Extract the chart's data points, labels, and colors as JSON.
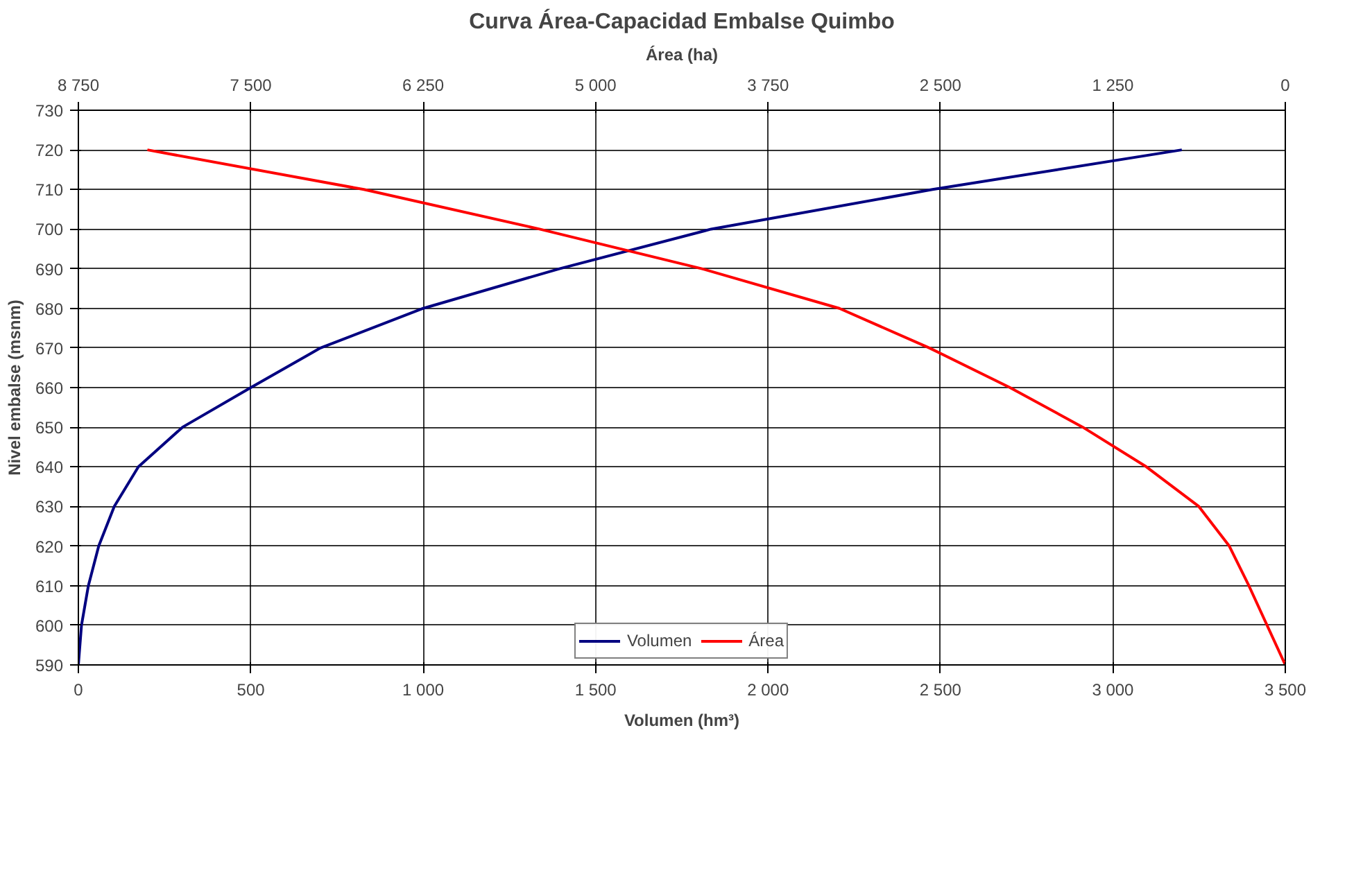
{
  "chart_data": {
    "type": "line",
    "title": "Curva Área-Capacidad Embalse Quimbo",
    "xlabel": "Volumen (hm³)",
    "x2label": "Área (ha)",
    "ylabel": "Nivel embalse (msnm)",
    "series": [
      {
        "name": "Volumen",
        "color": "#000080",
        "x": [
          0,
          9,
          29,
          59,
          104,
          174,
          302,
          500,
          702,
          1000,
          1395,
          1835,
          2477,
          3200
        ],
        "values": [
          590,
          600,
          610,
          620,
          630,
          640,
          650,
          660,
          670,
          680,
          690,
          700,
          710,
          720
        ]
      },
      {
        "name": "Área",
        "color": "#ff0000",
        "axis": "x2",
        "x": [
          0,
          264,
          406,
          627,
          1007,
          1468,
          1996,
          2580,
          3233,
          4229,
          5407,
          6680,
          8250
        ],
        "values": [
          590,
          610,
          620,
          630,
          640,
          650,
          660,
          670,
          680,
          690,
          700,
          710,
          720
        ]
      }
    ],
    "xlim": [
      0,
      3500
    ],
    "xticks": [
      0,
      500,
      {
        "value": 1000,
        "label": "1 000"
      },
      {
        "value": 1500,
        "label": "1 500"
      },
      {
        "value": 2000,
        "label": "2 000"
      },
      {
        "value": 2500,
        "label": "2 500"
      },
      {
        "value": 3000,
        "label": "3 000"
      },
      {
        "value": 3500,
        "label": "3 500"
      }
    ],
    "x2lim": [
      8750,
      0
    ],
    "x2ticks": [
      {
        "value": 8750,
        "label": "8 750"
      },
      {
        "value": 7500,
        "label": "7 500"
      },
      {
        "value": 6250,
        "label": "6 250"
      },
      {
        "value": 5000,
        "label": "5 000"
      },
      {
        "value": 3750,
        "label": "3 750"
      },
      {
        "value": 2500,
        "label": "2 500"
      },
      {
        "value": 1250,
        "label": "1 250"
      },
      0
    ],
    "ylim": [
      590,
      730
    ],
    "yticks": [
      590,
      600,
      610,
      620,
      630,
      640,
      650,
      660,
      670,
      680,
      690,
      700,
      710,
      720,
      730
    ],
    "grid": true,
    "legend": "bottom",
    "marker": "none",
    "line_style": "solid"
  }
}
